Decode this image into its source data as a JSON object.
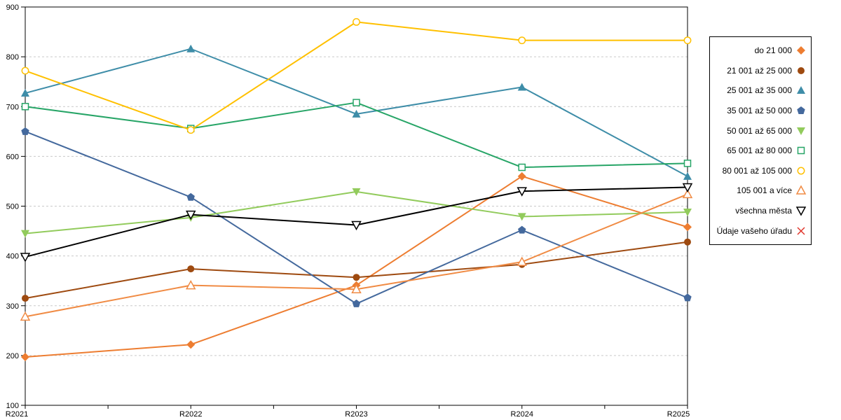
{
  "chart_data": {
    "type": "line",
    "title": "",
    "xlabel": "",
    "ylabel": "",
    "categories": [
      "R2021",
      "R2022",
      "R2023",
      "R2024",
      "R2025"
    ],
    "y_tick_labels": [
      "100",
      "200",
      "300",
      "400",
      "500",
      "600",
      "700",
      "800",
      "900"
    ],
    "ylim": [
      100,
      900
    ],
    "grid": "horizontal-dashed",
    "legend_position": "right-outside",
    "series": [
      {
        "name": "do 21 000",
        "marker": "diamond-filled",
        "color": "#ED7D31",
        "values": [
          197,
          222,
          341,
          560,
          458
        ]
      },
      {
        "name": "21 001 až 25 000",
        "marker": "circle-filled",
        "color": "#9E4A10",
        "values": [
          315,
          374,
          357,
          383,
          428
        ]
      },
      {
        "name": "25 001 až 35 000",
        "marker": "triangle-up-filled",
        "color": "#3E8DA8",
        "values": [
          727,
          816,
          685,
          739,
          560
        ]
      },
      {
        "name": "35 001 až 50 000",
        "marker": "pentagon-filled",
        "color": "#44699D",
        "values": [
          650,
          518,
          304,
          452,
          316
        ]
      },
      {
        "name": "50 001 až 65 000",
        "marker": "triangle-down-filled",
        "color": "#92CB5C",
        "values": [
          445,
          477,
          529,
          479,
          488
        ]
      },
      {
        "name": "65 001 až 80 000",
        "marker": "square-hollow",
        "color": "#27A567",
        "values": [
          700,
          656,
          708,
          578,
          586
        ]
      },
      {
        "name": "80 001 až 105 000",
        "marker": "circle-hollow",
        "color": "#FFC000",
        "values": [
          772,
          653,
          870,
          833,
          833
        ]
      },
      {
        "name": "105 001 a více",
        "marker": "triangle-up-hollow",
        "color": "#F08B44",
        "values": [
          278,
          341,
          333,
          388,
          524
        ]
      },
      {
        "name": "všechna města",
        "marker": "triangle-down-hollow",
        "color": "#000000",
        "values": [
          398,
          483,
          462,
          530,
          538
        ]
      },
      {
        "name": "Údaje vašeho úřadu",
        "marker": "x",
        "color": "#E03127",
        "values": []
      }
    ]
  }
}
